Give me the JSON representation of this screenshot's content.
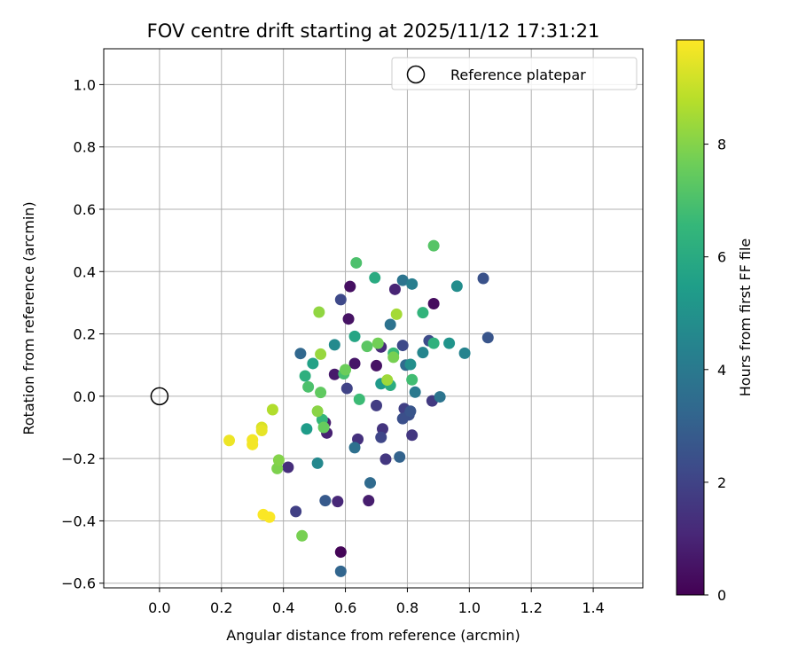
{
  "chart_data": {
    "type": "scatter",
    "title": "FOV centre drift starting at 2025/11/12 17:31:21",
    "xlabel": "Angular distance from reference (arcmin)",
    "ylabel": "Rotation from reference (arcmin)",
    "xlim": [
      -0.18,
      1.56
    ],
    "ylim": [
      -0.615,
      1.115
    ],
    "xticks": [
      0.0,
      0.2,
      0.4,
      0.6,
      0.8,
      1.0,
      1.2,
      1.4
    ],
    "xtick_labels": [
      "0.0",
      "0.2",
      "0.4",
      "0.6",
      "0.8",
      "1.0",
      "1.2",
      "1.4"
    ],
    "yticks": [
      -0.6,
      -0.4,
      -0.2,
      0.0,
      0.2,
      0.4,
      0.6,
      0.8,
      1.0
    ],
    "ytick_labels": [
      "−0.6",
      "−0.4",
      "−0.2",
      "0.0",
      "0.2",
      "0.4",
      "0.6",
      "0.8",
      "1.0"
    ],
    "grid": true,
    "legend": {
      "position": "top-right",
      "entries": [
        "Reference platepar"
      ]
    },
    "reference_point": {
      "x": 0.0,
      "y": 0.0,
      "label": "Reference platepar"
    },
    "colorbar": {
      "label": "Hours from first FF file",
      "min": 0,
      "max": 9.85,
      "ticks": [
        0,
        2,
        4,
        6,
        8
      ],
      "tick_labels": [
        "0",
        "2",
        "4",
        "6",
        "8"
      ],
      "colormap": "viridis",
      "colors": [
        "#440154",
        "#482878",
        "#3e4989",
        "#31688e",
        "#26828e",
        "#1f9e89",
        "#35b779",
        "#6ece58",
        "#b5de2b",
        "#fde725"
      ]
    },
    "points": [
      {
        "x": 0.585,
        "y": -0.5,
        "h": 0.1
      },
      {
        "x": 0.885,
        "y": 0.297,
        "h": 0.3
      },
      {
        "x": 0.615,
        "y": 0.352,
        "h": 0.4
      },
      {
        "x": 0.61,
        "y": 0.248,
        "h": 0.5
      },
      {
        "x": 0.63,
        "y": 0.105,
        "h": 0.6
      },
      {
        "x": 0.7,
        "y": 0.098,
        "h": 0.5
      },
      {
        "x": 0.565,
        "y": 0.07,
        "h": 0.7
      },
      {
        "x": 0.535,
        "y": -0.085,
        "h": 0.8
      },
      {
        "x": 0.54,
        "y": -0.118,
        "h": 0.9
      },
      {
        "x": 0.675,
        "y": -0.335,
        "h": 0.8
      },
      {
        "x": 0.76,
        "y": 0.343,
        "h": 1.0
      },
      {
        "x": 0.575,
        "y": -0.338,
        "h": 1.1
      },
      {
        "x": 0.715,
        "y": 0.158,
        "h": 1.2
      },
      {
        "x": 0.415,
        "y": -0.228,
        "h": 1.3
      },
      {
        "x": 0.64,
        "y": -0.138,
        "h": 1.4
      },
      {
        "x": 0.72,
        "y": -0.105,
        "h": 1.5
      },
      {
        "x": 0.73,
        "y": -0.202,
        "h": 1.6
      },
      {
        "x": 0.815,
        "y": -0.125,
        "h": 1.6
      },
      {
        "x": 0.88,
        "y": -0.015,
        "h": 1.7
      },
      {
        "x": 0.7,
        "y": -0.03,
        "h": 1.8
      },
      {
        "x": 0.79,
        "y": -0.04,
        "h": 1.9
      },
      {
        "x": 0.44,
        "y": -0.37,
        "h": 1.9
      },
      {
        "x": 0.605,
        "y": 0.025,
        "h": 2.0
      },
      {
        "x": 0.715,
        "y": -0.132,
        "h": 2.1
      },
      {
        "x": 0.585,
        "y": 0.31,
        "h": 2.2
      },
      {
        "x": 0.785,
        "y": 0.163,
        "h": 2.2
      },
      {
        "x": 0.87,
        "y": 0.178,
        "h": 2.3
      },
      {
        "x": 0.805,
        "y": -0.06,
        "h": 2.4
      },
      {
        "x": 0.785,
        "y": -0.072,
        "h": 2.4
      },
      {
        "x": 1.045,
        "y": 0.378,
        "h": 2.5
      },
      {
        "x": 1.06,
        "y": 0.188,
        "h": 2.6
      },
      {
        "x": 0.81,
        "y": -0.048,
        "h": 2.6
      },
      {
        "x": 0.535,
        "y": -0.335,
        "h": 2.8
      },
      {
        "x": 0.775,
        "y": -0.195,
        "h": 3.1
      },
      {
        "x": 0.585,
        "y": -0.562,
        "h": 3.2
      },
      {
        "x": 0.455,
        "y": 0.137,
        "h": 3.3
      },
      {
        "x": 0.795,
        "y": 0.1,
        "h": 3.4
      },
      {
        "x": 0.68,
        "y": -0.278,
        "h": 3.4
      },
      {
        "x": 0.63,
        "y": -0.165,
        "h": 3.6
      },
      {
        "x": 0.745,
        "y": 0.23,
        "h": 3.7
      },
      {
        "x": 0.785,
        "y": 0.372,
        "h": 3.8
      },
      {
        "x": 0.905,
        "y": -0.002,
        "h": 3.8
      },
      {
        "x": 0.825,
        "y": 0.013,
        "h": 4.0
      },
      {
        "x": 0.815,
        "y": 0.36,
        "h": 4.2
      },
      {
        "x": 0.985,
        "y": 0.138,
        "h": 4.4
      },
      {
        "x": 0.85,
        "y": 0.14,
        "h": 4.5
      },
      {
        "x": 0.51,
        "y": -0.215,
        "h": 4.6
      },
      {
        "x": 0.565,
        "y": 0.165,
        "h": 4.7
      },
      {
        "x": 0.96,
        "y": 0.353,
        "h": 4.8
      },
      {
        "x": 0.81,
        "y": 0.102,
        "h": 4.9
      },
      {
        "x": 0.935,
        "y": 0.17,
        "h": 5.1
      },
      {
        "x": 0.715,
        "y": 0.04,
        "h": 5.3
      },
      {
        "x": 0.475,
        "y": -0.105,
        "h": 5.4
      },
      {
        "x": 0.495,
        "y": 0.105,
        "h": 5.6
      },
      {
        "x": 0.63,
        "y": 0.192,
        "h": 5.8
      },
      {
        "x": 0.695,
        "y": 0.38,
        "h": 6.0
      },
      {
        "x": 0.745,
        "y": 0.035,
        "h": 6.1
      },
      {
        "x": 0.47,
        "y": 0.065,
        "h": 6.2
      },
      {
        "x": 0.885,
        "y": 0.17,
        "h": 6.3
      },
      {
        "x": 0.85,
        "y": 0.268,
        "h": 6.4
      },
      {
        "x": 0.525,
        "y": -0.075,
        "h": 6.5
      },
      {
        "x": 0.755,
        "y": 0.138,
        "h": 6.6
      },
      {
        "x": 0.645,
        "y": -0.01,
        "h": 6.7
      },
      {
        "x": 0.815,
        "y": 0.053,
        "h": 6.8
      },
      {
        "x": 0.595,
        "y": 0.072,
        "h": 6.9
      },
      {
        "x": 0.48,
        "y": 0.03,
        "h": 7.0
      },
      {
        "x": 0.635,
        "y": 0.428,
        "h": 7.0
      },
      {
        "x": 0.885,
        "y": 0.483,
        "h": 7.2
      },
      {
        "x": 0.67,
        "y": 0.16,
        "h": 7.3
      },
      {
        "x": 0.52,
        "y": 0.012,
        "h": 7.4
      },
      {
        "x": 0.53,
        "y": -0.1,
        "h": 7.5
      },
      {
        "x": 0.6,
        "y": 0.085,
        "h": 7.6
      },
      {
        "x": 0.705,
        "y": 0.17,
        "h": 7.7
      },
      {
        "x": 0.755,
        "y": 0.125,
        "h": 7.8
      },
      {
        "x": 0.46,
        "y": -0.448,
        "h": 7.8
      },
      {
        "x": 0.38,
        "y": -0.232,
        "h": 7.9
      },
      {
        "x": 0.385,
        "y": -0.205,
        "h": 8.0
      },
      {
        "x": 0.51,
        "y": -0.048,
        "h": 8.1
      },
      {
        "x": 0.515,
        "y": 0.27,
        "h": 8.2
      },
      {
        "x": 0.52,
        "y": 0.135,
        "h": 8.3
      },
      {
        "x": 0.735,
        "y": 0.052,
        "h": 8.4
      },
      {
        "x": 0.765,
        "y": 0.263,
        "h": 8.5
      },
      {
        "x": 0.365,
        "y": -0.043,
        "h": 8.7
      },
      {
        "x": 0.33,
        "y": -0.1,
        "h": 9.3
      },
      {
        "x": 0.33,
        "y": -0.11,
        "h": 9.5
      },
      {
        "x": 0.225,
        "y": -0.142,
        "h": 9.6
      },
      {
        "x": 0.3,
        "y": -0.14,
        "h": 9.7
      },
      {
        "x": 0.3,
        "y": -0.155,
        "h": 9.7
      },
      {
        "x": 0.335,
        "y": -0.38,
        "h": 9.8
      },
      {
        "x": 0.355,
        "y": -0.388,
        "h": 9.8
      }
    ]
  }
}
